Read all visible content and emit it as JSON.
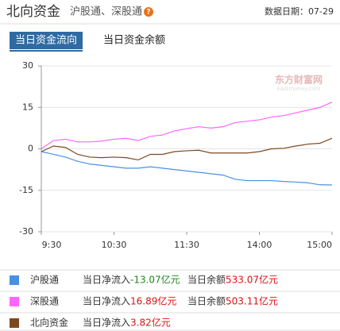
{
  "header": {
    "title": "北向资金",
    "subtitle": "沪股通、深股通",
    "help_icon": "?",
    "date_label": "数据日期：07-29"
  },
  "tabs": [
    "当日资金流向",
    "当日资金余额"
  ],
  "chart_data": {
    "type": "line",
    "watermark": "东方财富网",
    "watermark_sub": "eastmoney.com",
    "x": [
      0,
      10,
      20,
      30,
      40,
      50,
      60,
      70,
      80,
      90,
      100,
      110,
      120,
      130,
      140,
      150,
      160,
      170,
      180,
      190,
      200,
      210,
      220,
      230,
      240
    ],
    "xlim": [
      0,
      240
    ],
    "xticks": [
      {
        "value": 0,
        "label": "9:30"
      },
      {
        "value": 60,
        "label": "10:30"
      },
      {
        "value": 120,
        "label": "11:30"
      },
      {
        "value": 180,
        "label": "14:00"
      },
      {
        "value": 240,
        "label": "15:00"
      }
    ],
    "ylim": [
      -30,
      30
    ],
    "yticks": [
      30,
      15,
      0,
      -15,
      -30
    ],
    "grid": true,
    "stat_labels": {
      "net": "当日净流入",
      "balance": "当日余额"
    },
    "series": [
      {
        "name": "沪股通",
        "color": "#4a90e2",
        "values": [
          -1,
          -2,
          -3,
          -4.5,
          -5.5,
          -6,
          -6.5,
          -7,
          -7,
          -6.5,
          -7,
          -7.5,
          -8,
          -8.5,
          -9,
          -9.5,
          -11,
          -11.5,
          -11.5,
          -11.5,
          -11.8,
          -12,
          -12.3,
          -13,
          -13.07
        ],
        "net_inflow": {
          "value": -13.07,
          "label": "-13.07亿元"
        },
        "balance": {
          "value": 533.07,
          "label": "533.07亿元"
        }
      },
      {
        "name": "深股通",
        "color": "#ff66ff",
        "values": [
          0,
          3,
          3.5,
          2.5,
          2.5,
          2.8,
          3.5,
          3.8,
          3,
          4.5,
          5,
          6.5,
          7.3,
          8,
          7.5,
          8,
          9.5,
          10,
          10.5,
          11.5,
          12,
          13,
          14,
          15,
          16.89
        ],
        "net_inflow": {
          "value": 16.89,
          "label": "16.89亿元"
        },
        "balance": {
          "value": 503.11,
          "label": "503.11亿元"
        }
      },
      {
        "name": "北向资金",
        "color": "#7a4a1e",
        "values": [
          -1,
          1,
          0.5,
          -2,
          -3,
          -3.2,
          -3,
          -3.2,
          -4,
          -2,
          -2,
          -1,
          -0.7,
          -0.5,
          -1.5,
          -1.5,
          -1.5,
          -1.5,
          -1,
          0,
          0.2,
          1,
          1.7,
          2,
          3.82
        ],
        "net_inflow": {
          "value": 3.82,
          "label": "3.82亿元"
        }
      }
    ]
  }
}
